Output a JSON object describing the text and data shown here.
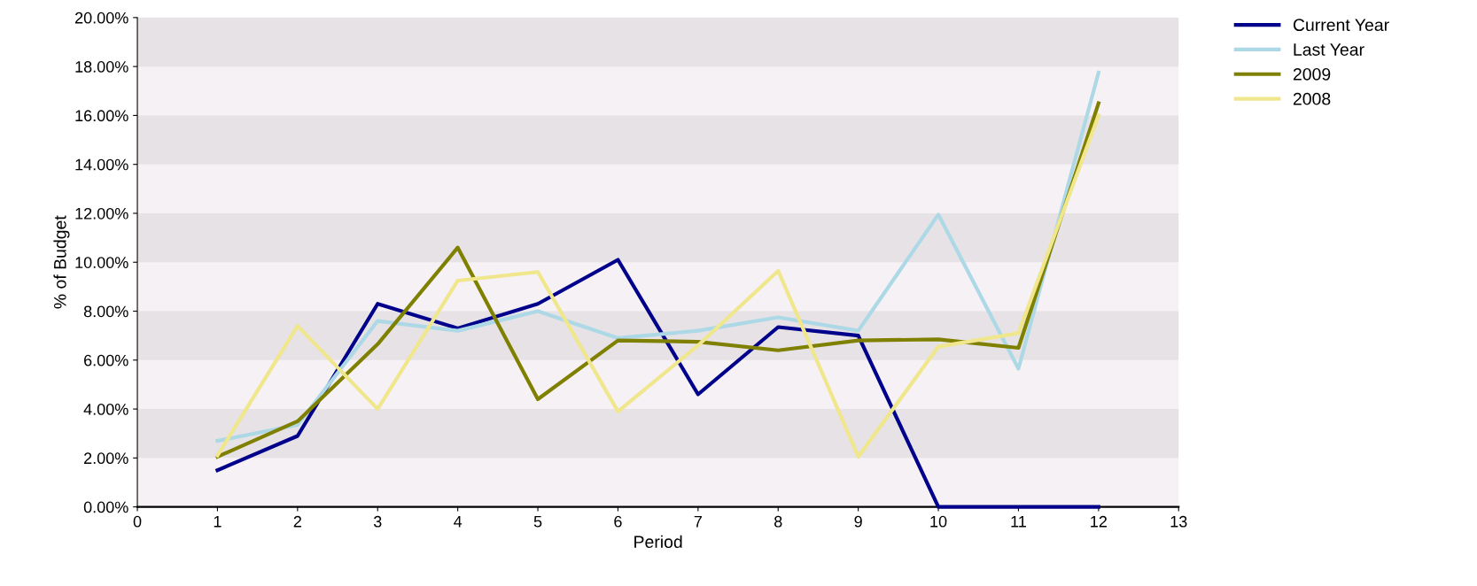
{
  "chart_data": {
    "type": "line",
    "xlabel": "Period",
    "ylabel": "% of Budget",
    "x": [
      1,
      2,
      3,
      4,
      5,
      6,
      7,
      8,
      9,
      10,
      11,
      12
    ],
    "series": [
      {
        "name": "Current Year",
        "color": "#00008b",
        "values": [
          1.5,
          2.9,
          8.3,
          7.3,
          8.3,
          10.1,
          4.6,
          7.35,
          7.0,
          0,
          0,
          0
        ]
      },
      {
        "name": "Last Year",
        "color": "#add8e6",
        "values": [
          2.7,
          3.35,
          7.6,
          7.2,
          8.0,
          6.9,
          7.2,
          7.75,
          7.2,
          11.95,
          5.65,
          17.75
        ]
      },
      {
        "name": "2009",
        "color": "#808000",
        "values": [
          2.05,
          3.5,
          6.65,
          10.6,
          4.4,
          6.8,
          6.75,
          6.4,
          6.8,
          6.85,
          6.5,
          16.5
        ]
      },
      {
        "name": "2008",
        "color": "#f0e68c",
        "values": [
          2.1,
          7.4,
          4.0,
          9.25,
          9.6,
          3.9,
          6.6,
          9.65,
          2.05,
          6.55,
          7.1,
          16.0
        ]
      }
    ],
    "xlim": [
      0,
      13
    ],
    "xticks": [
      0,
      1,
      2,
      3,
      4,
      5,
      6,
      7,
      8,
      9,
      10,
      11,
      12,
      13
    ],
    "ylim": [
      0,
      20
    ],
    "yticks": [
      {
        "value": 0,
        "label": "0.00%"
      },
      {
        "value": 2,
        "label": "2.00%"
      },
      {
        "value": 4,
        "label": "4.00%"
      },
      {
        "value": 6,
        "label": "6.00%"
      },
      {
        "value": 8,
        "label": "8.00%"
      },
      {
        "value": 10,
        "label": "10.00%"
      },
      {
        "value": 12,
        "label": "12.00%"
      },
      {
        "value": 14,
        "label": "14.00%"
      },
      {
        "value": 16,
        "label": "16.00%"
      },
      {
        "value": 18,
        "label": "18.00%"
      },
      {
        "value": 20,
        "label": "20.00%"
      }
    ],
    "bands": [
      {
        "axis": "y",
        "from": 2,
        "to": 4,
        "color": "#e6e2e6"
      },
      {
        "axis": "y",
        "from": 6,
        "to": 8,
        "color": "#e6e2e6"
      },
      {
        "axis": "y",
        "from": 10,
        "to": 12,
        "color": "#e6e2e6"
      },
      {
        "axis": "y",
        "from": 14,
        "to": 16,
        "color": "#e6e2e6"
      },
      {
        "axis": "y",
        "from": 18,
        "to": 20,
        "color": "#e6e2e6"
      }
    ],
    "legend": "top right",
    "marker": "none",
    "line_style": "solid"
  }
}
